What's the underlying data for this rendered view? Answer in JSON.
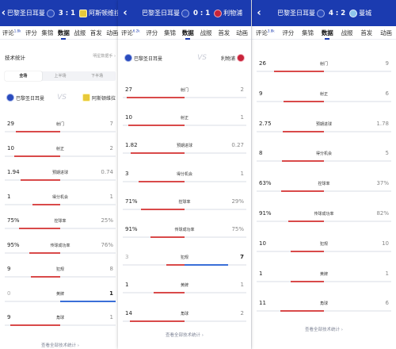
{
  "colors": {
    "header": "#1b3bb0",
    "home_bar": "#d94a4a",
    "away_bar": "#3a6fd8"
  },
  "panel1": {
    "home": "巴黎圣日耳曼",
    "away": "阿斯顿维拉",
    "score": "3 : 1",
    "tabs": [
      {
        "label": "评论",
        "badge": "1.8k"
      },
      {
        "label": "评分"
      },
      {
        "label": "集锦"
      },
      {
        "label": "数据"
      },
      {
        "label": "战报"
      },
      {
        "label": "首发"
      },
      {
        "label": "动画"
      }
    ],
    "active_tab": 3,
    "section_title": "技术统计",
    "section_more": "明星数据手 ›",
    "segments": [
      "全场",
      "上半场",
      "下半场"
    ],
    "stats": [
      {
        "name": "射门",
        "home": "29",
        "away": "7",
        "hp": 0.8,
        "ap": 0.2
      },
      {
        "name": "射正",
        "home": "10",
        "away": "2",
        "hp": 0.83,
        "ap": 0.17
      },
      {
        "name": "预期进球",
        "home": "1.94",
        "away": "0.74",
        "hp": 0.72,
        "ap": 0.28
      },
      {
        "name": "得分机会",
        "home": "1",
        "away": "1",
        "hp": 0.5,
        "ap": 0.5
      },
      {
        "name": "控球率",
        "home": "75%",
        "away": "25%",
        "hp": 0.75,
        "ap": 0.25
      },
      {
        "name": "传球成功率",
        "home": "95%",
        "away": "76%",
        "hp": 0.56,
        "ap": 0.44
      },
      {
        "name": "犯规",
        "home": "9",
        "away": "8",
        "hp": 0.53,
        "ap": 0.47
      },
      {
        "name": "黄牌",
        "home": "0",
        "away": "1",
        "hp": 0.0,
        "ap": 1.0
      },
      {
        "name": "角球",
        "home": "9",
        "away": "1",
        "hp": 0.9,
        "ap": 0.1
      }
    ],
    "footer": "查看全部技术统计 ›"
  },
  "panel2": {
    "home": "巴黎圣日耳曼",
    "away": "利物浦",
    "score": "0 : 1",
    "tabs": [
      {
        "label": "评论",
        "badge": "6.2k"
      },
      {
        "label": "评分"
      },
      {
        "label": "集锦"
      },
      {
        "label": "数据"
      },
      {
        "label": "战报"
      },
      {
        "label": "首发"
      },
      {
        "label": "动画"
      }
    ],
    "active_tab": 3,
    "stats": [
      {
        "name": "射门",
        "home": "27",
        "away": "2",
        "hp": 0.93,
        "ap": 0.07
      },
      {
        "name": "射正",
        "home": "10",
        "away": "1",
        "hp": 0.91,
        "ap": 0.09
      },
      {
        "name": "预期进球",
        "home": "1.82",
        "away": "0.27",
        "hp": 0.87,
        "ap": 0.13
      },
      {
        "name": "得分机会",
        "home": "3",
        "away": "1",
        "hp": 0.75,
        "ap": 0.25
      },
      {
        "name": "控球率",
        "home": "71%",
        "away": "29%",
        "hp": 0.71,
        "ap": 0.29
      },
      {
        "name": "传球成功率",
        "home": "91%",
        "away": "75%",
        "hp": 0.55,
        "ap": 0.45
      },
      {
        "name": "犯规",
        "home": "3",
        "away": "7",
        "hp": 0.3,
        "ap": 0.7
      },
      {
        "name": "黄牌",
        "home": "1",
        "away": "1",
        "hp": 0.5,
        "ap": 0.5
      },
      {
        "name": "角球",
        "home": "14",
        "away": "2",
        "hp": 0.88,
        "ap": 0.12
      }
    ],
    "footer": "查看全部技术统计 ›"
  },
  "panel3": {
    "home": "巴黎圣日耳曼",
    "away": "曼城",
    "score": "4 : 2",
    "tabs": [
      {
        "label": "评论",
        "badge": "3.8k"
      },
      {
        "label": "评分"
      },
      {
        "label": "集锦"
      },
      {
        "label": "数据"
      },
      {
        "label": "战报"
      },
      {
        "label": "首发"
      },
      {
        "label": "动画"
      }
    ],
    "active_tab": 3,
    "stats": [
      {
        "name": "射门",
        "home": "26",
        "away": "9",
        "hp": 0.74,
        "ap": 0.26
      },
      {
        "name": "射正",
        "home": "9",
        "away": "6",
        "hp": 0.6,
        "ap": 0.4
      },
      {
        "name": "预期进球",
        "home": "2.75",
        "away": "1.78",
        "hp": 0.61,
        "ap": 0.39
      },
      {
        "name": "得分机会",
        "home": "8",
        "away": "5",
        "hp": 0.62,
        "ap": 0.38
      },
      {
        "name": "控球率",
        "home": "63%",
        "away": "37%",
        "hp": 0.63,
        "ap": 0.37
      },
      {
        "name": "传球成功率",
        "home": "91%",
        "away": "82%",
        "hp": 0.53,
        "ap": 0.47
      },
      {
        "name": "犯规",
        "home": "10",
        "away": "10",
        "hp": 0.5,
        "ap": 0.5
      },
      {
        "name": "黄牌",
        "home": "1",
        "away": "1",
        "hp": 0.5,
        "ap": 0.5
      },
      {
        "name": "角球",
        "home": "11",
        "away": "6",
        "hp": 0.65,
        "ap": 0.35
      }
    ],
    "footer": "查看全部技术统计 ›"
  }
}
